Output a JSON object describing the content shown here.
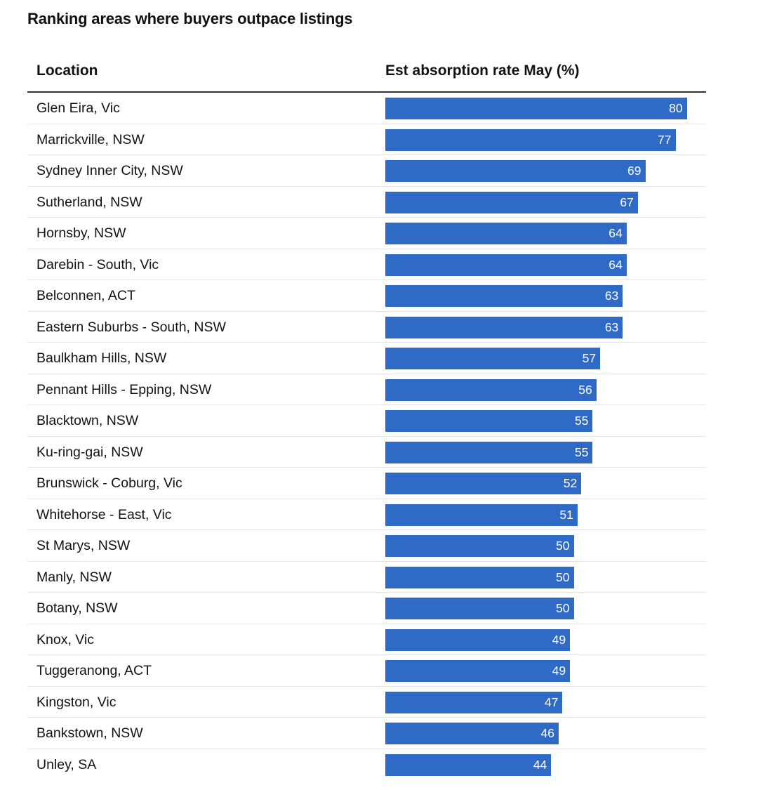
{
  "chart_data": {
    "type": "bar",
    "orientation": "horizontal",
    "title": "Ranking areas where buyers outpace listings",
    "column_headers": [
      "Location",
      "Est absorption rate May (%)"
    ],
    "xlim": [
      0,
      100
    ],
    "bar_color": "#2f6ac6",
    "categories": [
      "Glen Eira, Vic",
      "Marrickville, NSW",
      "Sydney Inner City, NSW",
      "Sutherland, NSW",
      "Hornsby, NSW",
      "Darebin - South, Vic",
      "Belconnen, ACT",
      "Eastern Suburbs - South, NSW",
      "Baulkham Hills, NSW",
      "Pennant Hills - Epping, NSW",
      "Blacktown, NSW",
      "Ku-ring-gai, NSW",
      "Brunswick - Coburg, Vic",
      "Whitehorse - East, Vic",
      "St Marys, NSW",
      "Manly, NSW",
      "Botany, NSW",
      "Knox, Vic",
      "Tuggeranong, ACT",
      "Kingston, Vic",
      "Bankstown, NSW",
      "Unley, SA"
    ],
    "values": [
      80,
      77,
      69,
      67,
      64,
      64,
      63,
      63,
      57,
      56,
      55,
      55,
      52,
      51,
      50,
      50,
      50,
      49,
      49,
      47,
      46,
      44
    ]
  }
}
